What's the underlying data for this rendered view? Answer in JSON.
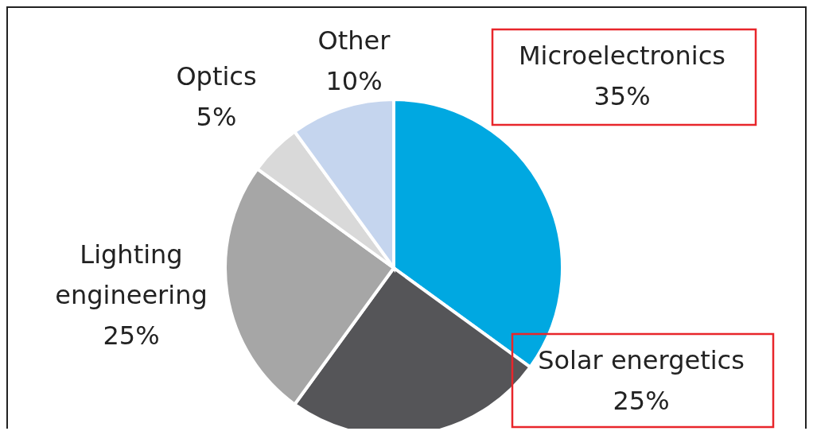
{
  "chart_data": {
    "type": "pie",
    "categories": [
      "Microelectronics",
      "Solar energetics",
      "Lighting engineering",
      "Optics",
      "Other"
    ],
    "values": [
      35,
      25,
      25,
      5,
      10
    ],
    "value_labels": [
      "35%",
      "25%",
      "25%",
      "5%",
      "10%"
    ],
    "colors": [
      "#00a8e1",
      "#555558",
      "#a6a6a6",
      "#d9d9d9",
      "#c5d5ee"
    ]
  }
}
